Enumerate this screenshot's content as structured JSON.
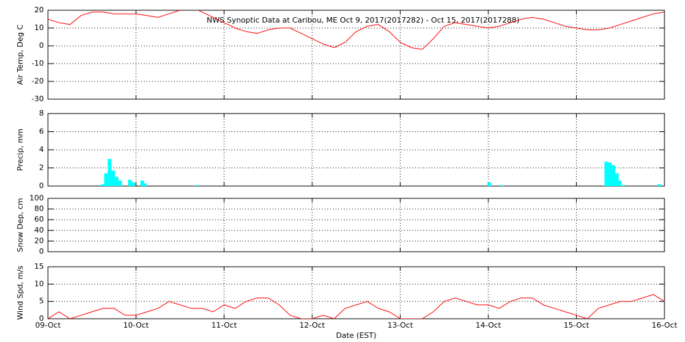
{
  "chart_data": [
    {
      "type": "line",
      "title": "NWS Synoptic Data at Caribou, ME   Oct  9, 2017(2017282) - Oct 15, 2017(2017288)",
      "ylabel": "Air Temp, Deg C",
      "xlim": [
        0,
        7
      ],
      "ylim": [
        -30,
        20
      ],
      "yticks": [
        -30,
        -20,
        -10,
        0,
        10,
        20
      ],
      "grid": true,
      "color": "#ff0000",
      "x": [
        0,
        0.125,
        0.25,
        0.375,
        0.5,
        0.625,
        0.75,
        0.875,
        1,
        1.125,
        1.25,
        1.375,
        1.5,
        1.625,
        1.75,
        1.875,
        2,
        2.125,
        2.25,
        2.375,
        2.5,
        2.625,
        2.75,
        2.875,
        3,
        3.125,
        3.25,
        3.375,
        3.5,
        3.625,
        3.75,
        3.875,
        4,
        4.125,
        4.25,
        4.375,
        4.5,
        4.625,
        4.75,
        4.875,
        5,
        5.125,
        5.25,
        5.375,
        5.5,
        5.625,
        5.75,
        5.875,
        6,
        6.125,
        6.25,
        6.375,
        6.5,
        6.625,
        6.75,
        6.875,
        7
      ],
      "values": [
        15,
        13,
        12,
        17,
        19,
        19,
        18,
        18,
        18,
        17,
        16,
        18,
        20,
        22,
        19,
        16,
        13,
        10,
        8,
        7,
        9,
        10,
        10,
        7,
        4,
        1,
        -1,
        2,
        8,
        11,
        12,
        8,
        2,
        -1,
        -2,
        4,
        11,
        13,
        12,
        11,
        10,
        11,
        13,
        15,
        16,
        15,
        13,
        11,
        10,
        9,
        9,
        10,
        12,
        14,
        16,
        18,
        19
      ]
    },
    {
      "type": "bar",
      "ylabel": "Precip, mm",
      "xlim": [
        0,
        7
      ],
      "ylim": [
        0,
        8
      ],
      "yticks": [
        0,
        2,
        4,
        6,
        8
      ],
      "grid": true,
      "color": "#00ffff",
      "x": [
        0.62,
        0.66,
        0.7,
        0.74,
        0.78,
        0.82,
        0.93,
        0.97,
        1.07,
        1.1,
        1.69,
        5.01,
        5.15,
        6.34,
        6.38,
        6.42,
        6.46,
        6.49,
        6.53,
        6.94
      ],
      "values": [
        0.2,
        1.4,
        3.0,
        1.7,
        1.0,
        0.6,
        0.7,
        0.4,
        0.6,
        0.3,
        0.1,
        0.4,
        0.1,
        2.7,
        2.6,
        2.3,
        1.4,
        0.6,
        0.1,
        0.2
      ]
    },
    {
      "type": "line",
      "ylabel": "Snow Dep, cm",
      "xlim": [
        0,
        7
      ],
      "ylim": [
        0,
        100
      ],
      "yticks": [
        0,
        20,
        40,
        60,
        80,
        100
      ],
      "grid": true,
      "color": "#ff0000",
      "x": [],
      "values": []
    },
    {
      "type": "line",
      "ylabel": "Wind Spd, m/s",
      "xlabel": "Date (EST)",
      "xlim": [
        0,
        7
      ],
      "ylim": [
        0,
        15
      ],
      "yticks": [
        0,
        5,
        10,
        15
      ],
      "grid": true,
      "color": "#ff0000",
      "xticks": [
        {
          "value": 0,
          "label": "09-Oct"
        },
        {
          "value": 1,
          "label": "10-Oct"
        },
        {
          "value": 2,
          "label": "11-Oct"
        },
        {
          "value": 3,
          "label": "12-Oct"
        },
        {
          "value": 4,
          "label": "13-Oct"
        },
        {
          "value": 5,
          "label": "14-Oct"
        },
        {
          "value": 6,
          "label": "15-Oct"
        },
        {
          "value": 7,
          "label": "16-Oct"
        }
      ],
      "x": [
        0,
        0.125,
        0.25,
        0.375,
        0.5,
        0.625,
        0.75,
        0.875,
        1,
        1.125,
        1.25,
        1.375,
        1.5,
        1.625,
        1.75,
        1.875,
        2,
        2.125,
        2.25,
        2.375,
        2.5,
        2.625,
        2.75,
        2.875,
        3,
        3.125,
        3.25,
        3.375,
        3.5,
        3.625,
        3.75,
        3.875,
        4,
        4.125,
        4.25,
        4.375,
        4.5,
        4.625,
        4.75,
        4.875,
        5,
        5.125,
        5.25,
        5.375,
        5.5,
        5.625,
        5.75,
        5.875,
        6,
        6.125,
        6.25,
        6.375,
        6.5,
        6.625,
        6.75,
        6.875,
        7
      ],
      "values": [
        0,
        2,
        0,
        1,
        2,
        3,
        3,
        1,
        1,
        2,
        3,
        5,
        4,
        3,
        3,
        2,
        4,
        3,
        5,
        6,
        6,
        4,
        1,
        0,
        0,
        1,
        0,
        3,
        4,
        5,
        3,
        2,
        0,
        0,
        0,
        2,
        5,
        6,
        5,
        4,
        4,
        3,
        5,
        6,
        6,
        4,
        3,
        2,
        1,
        0,
        3,
        4,
        5,
        5,
        6,
        7,
        5
      ]
    }
  ]
}
